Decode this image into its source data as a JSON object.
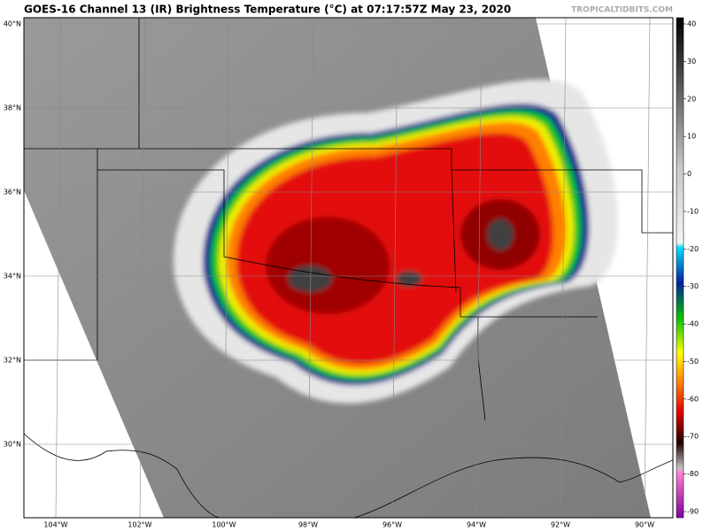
{
  "header": {
    "title": "GOES-16 Channel 13 (IR) Brightness Temperature (°C) at 07:17:57Z May 23, 2020",
    "watermark": "TROPICALTIDBITS.COM"
  },
  "map": {
    "latitude_labels": [
      "40°N",
      "38°N",
      "36°N",
      "34°N",
      "32°N",
      "30°N"
    ],
    "longitude_labels": [
      "104°W",
      "102°W",
      "100°W",
      "98°W",
      "96°W",
      "94°W",
      "92°W",
      "90°W"
    ]
  },
  "colorbar": {
    "ticks": [
      40,
      30,
      20,
      10,
      0,
      -10,
      -20,
      -30,
      -40,
      -50,
      -60,
      -70,
      -80,
      -90
    ]
  }
}
